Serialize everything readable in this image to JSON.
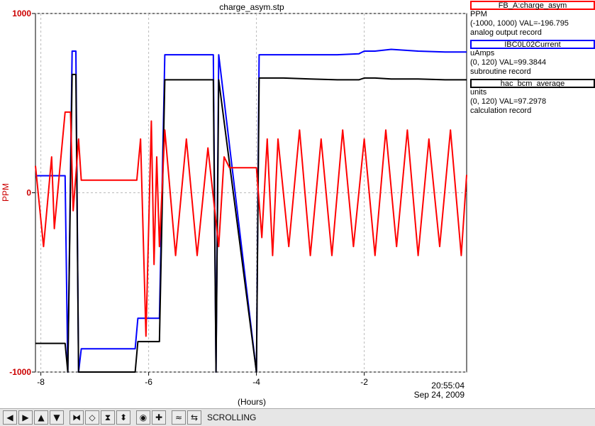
{
  "chart_data": {
    "type": "line",
    "title": "charge_asym.stp",
    "xlabel": "(Hours)",
    "ylabel": "PPM",
    "xlim": [
      -8.1,
      -0.1
    ],
    "ylim": [
      -1000,
      1000
    ],
    "x_ticks": [
      -8,
      -6,
      -4,
      -2
    ],
    "x_tick_labels": [
      "-8",
      "-6",
      "-4",
      "-2"
    ],
    "y_ticks": [
      -1000,
      0,
      1000
    ],
    "y_tick_labels": [
      "-1000",
      "0",
      "1000"
    ],
    "time_label": "20:55:04",
    "date_label": "Sep 24, 2009",
    "grid": true,
    "colors": {
      "red": "#ff0000",
      "blue": "#0000ff",
      "black": "#000000",
      "ylabel": "#cc0000"
    },
    "series": [
      {
        "name": "FB_A:charge_asym",
        "color": "#ff0000",
        "x": [
          -8.1,
          -7.95,
          -7.8,
          -7.75,
          -7.55,
          -7.45,
          -7.4,
          -7.3,
          -7.25,
          -7.2,
          -6.8,
          -6.5,
          -6.22,
          -6.15,
          -6.1,
          -6.05,
          -5.95,
          -5.9,
          -5.85,
          -5.8,
          -5.7,
          -5.5,
          -5.3,
          -5.1,
          -4.9,
          -4.7,
          -4.6,
          -4.5,
          -4.45,
          -4.4,
          -4.2,
          -4.0,
          -3.9,
          -3.8,
          -3.7,
          -3.6,
          -3.4,
          -3.2,
          -3.0,
          -2.8,
          -2.6,
          -2.4,
          -2.2,
          -2.0,
          -1.8,
          -1.6,
          -1.4,
          -1.2,
          -1.0,
          -0.8,
          -0.6,
          -0.4,
          -0.2,
          -0.1
        ],
        "y": [
          150,
          -300,
          200,
          -200,
          450,
          450,
          -100,
          300,
          70,
          70,
          70,
          70,
          70,
          300,
          -250,
          -800,
          400,
          -400,
          200,
          -300,
          350,
          -350,
          300,
          -350,
          250,
          -300,
          200,
          140,
          140,
          140,
          140,
          140,
          -250,
          300,
          -350,
          300,
          -300,
          350,
          -350,
          300,
          -350,
          350,
          -300,
          300,
          -350,
          350,
          -300,
          350,
          -350,
          300,
          -300,
          350,
          -350,
          100
        ]
      },
      {
        "name": "IBC0L02Current",
        "color": "#0000ff",
        "x": [
          -8.1,
          -7.55,
          -7.5,
          -7.42,
          -7.4,
          -7.35,
          -7.3,
          -7.25,
          -7.2,
          -6.8,
          -6.5,
          -6.25,
          -6.2,
          -5.8,
          -5.7,
          -5.65,
          -5.2,
          -4.8,
          -4.75,
          -4.7,
          -4.0,
          -3.95,
          -3.9,
          -3.5,
          -3.0,
          -2.5,
          -2.1,
          -2.0,
          -1.8,
          -1.5,
          -1.0,
          -0.5,
          -0.1
        ],
        "y": [
          95,
          95,
          -1000,
          790,
          790,
          790,
          -1000,
          -870,
          -870,
          -870,
          -870,
          -870,
          -700,
          -700,
          770,
          770,
          770,
          770,
          -1000,
          770,
          -1000,
          770,
          770,
          770,
          770,
          770,
          775,
          790,
          790,
          800,
          790,
          785,
          785
        ]
      },
      {
        "name": "hac_bcm_average",
        "color": "#000000",
        "x": [
          -8.1,
          -7.55,
          -7.5,
          -7.42,
          -7.4,
          -7.35,
          -7.3,
          -7.25,
          -7.2,
          -6.8,
          -6.5,
          -6.25,
          -6.2,
          -5.8,
          -5.7,
          -5.65,
          -5.2,
          -4.8,
          -4.75,
          -4.7,
          -4.0,
          -3.95,
          -3.9,
          -3.5,
          -3.0,
          -2.5,
          -2.1,
          -2.0,
          -1.8,
          -1.5,
          -1.0,
          -0.5,
          -0.1
        ],
        "y": [
          -840,
          -840,
          -1000,
          660,
          660,
          660,
          -1000,
          -1000,
          -1000,
          -1000,
          -1000,
          -1000,
          -830,
          -830,
          630,
          630,
          630,
          630,
          -1000,
          630,
          -1000,
          640,
          640,
          640,
          635,
          630,
          630,
          640,
          640,
          635,
          635,
          630,
          630
        ]
      }
    ]
  },
  "legend": [
    {
      "title": "FB_A:charge_asym",
      "color": "#ff0000",
      "line1": "PPM",
      "line2": "(-1000, 1000) VAL=-196.795",
      "line3": "analog output record"
    },
    {
      "title": "IBC0L02Current",
      "color": "#0000ff",
      "line1": "uAmps",
      "line2": "(0, 120) VAL=99.3844",
      "line3": "subroutine record"
    },
    {
      "title": "hac_bcm_average",
      "color": "#000000",
      "line1": "units",
      "line2": "(0, 120) VAL=97.2978",
      "line3": "calculation record"
    }
  ],
  "toolbar": {
    "buttons": [
      {
        "name": "pan-left-button",
        "icon": "◀"
      },
      {
        "name": "pan-right-button",
        "icon": "▶"
      },
      {
        "name": "pan-up-button",
        "icon": "▲"
      },
      {
        "name": "pan-down-button",
        "icon": "▼"
      },
      {
        "name": "zoom-in-x-button",
        "icon": "⧓"
      },
      {
        "name": "zoom-out-x-button",
        "icon": "◇"
      },
      {
        "name": "zoom-in-y-button",
        "icon": "⧗"
      },
      {
        "name": "zoom-out-y-button",
        "icon": "⬍"
      },
      {
        "name": "autoscale-button",
        "icon": "◉"
      },
      {
        "name": "reset-button",
        "icon": "✚"
      },
      {
        "name": "style-button",
        "icon": "≈"
      },
      {
        "name": "history-button",
        "icon": "⇆"
      }
    ],
    "status": "SCROLLING"
  }
}
